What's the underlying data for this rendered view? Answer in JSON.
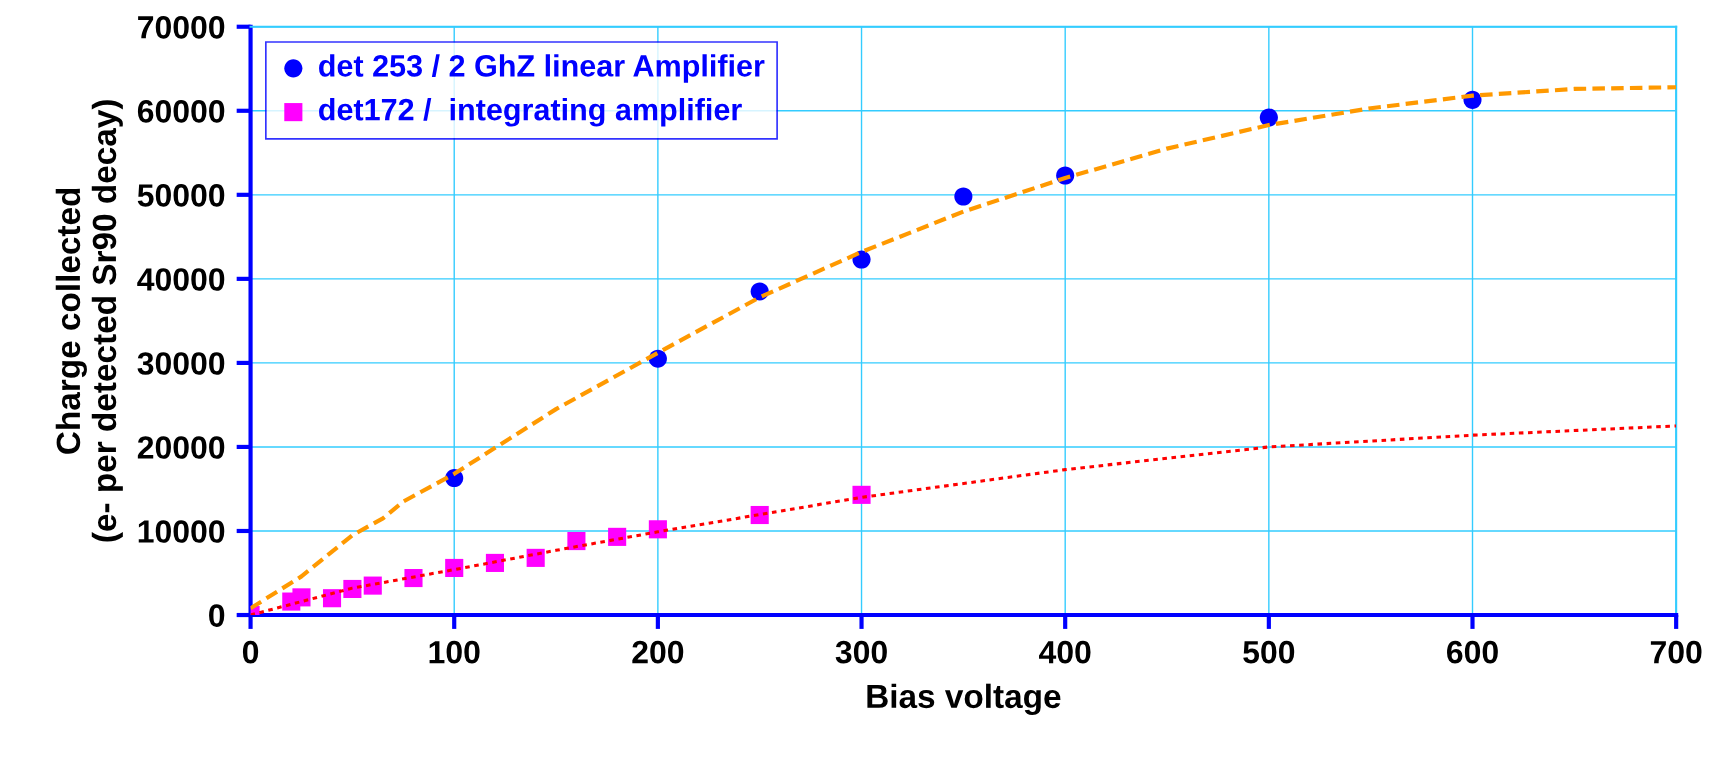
{
  "chart_data": {
    "type": "scatter",
    "xlabel": "Bias voltage",
    "ylabel": "Charge collected\n(e- per detected Sr90 decay)",
    "xlim": [
      0,
      700
    ],
    "xticks": [
      0,
      100,
      200,
      300,
      400,
      500,
      600,
      700
    ],
    "ylim": [
      0,
      70000
    ],
    "yticks": [
      0,
      10000,
      20000,
      30000,
      40000,
      50000,
      60000,
      70000
    ],
    "grid": true,
    "legend": "top left",
    "series": [
      {
        "type": "line",
        "color": "#ff9900",
        "line_style": "dashed",
        "marker": "none",
        "x": [
          0,
          25,
          50,
          65,
          75,
          100,
          150,
          200,
          250,
          300,
          350,
          400,
          450,
          500,
          550,
          600,
          650,
          700
        ],
        "values": [
          800,
          4600,
          9500,
          11500,
          13500,
          16800,
          24500,
          31200,
          37800,
          43200,
          48000,
          52000,
          55500,
          58300,
          60300,
          61800,
          62600,
          62800
        ]
      },
      {
        "type": "line",
        "color": "#ff0000",
        "line_style": "dotted",
        "marker": "none",
        "x": [
          0,
          50,
          100,
          150,
          200,
          300,
          400,
          500,
          600,
          700
        ],
        "values": [
          0,
          3200,
          5400,
          7700,
          9900,
          14000,
          17300,
          20000,
          21400,
          22500
        ]
      },
      {
        "name": "det 253 / 2 GhZ linear Amplifier",
        "color": "#0000ff",
        "marker": "circle",
        "x": [
          100,
          200,
          250,
          300,
          350,
          400,
          500,
          600
        ],
        "values": [
          16300,
          30500,
          38500,
          42300,
          49800,
          52300,
          59200,
          61300
        ]
      },
      {
        "name": "det172 /  integrating amplifier",
        "color": "#ff00ff",
        "marker": "square",
        "x": [
          0,
          20,
          25,
          40,
          50,
          60,
          80,
          100,
          120,
          140,
          160,
          180,
          200,
          250,
          300
        ],
        "values": [
          0,
          1600,
          2100,
          2000,
          3100,
          3500,
          4400,
          5600,
          6200,
          6800,
          8800,
          9300,
          10200,
          11900,
          14300
        ]
      }
    ]
  }
}
